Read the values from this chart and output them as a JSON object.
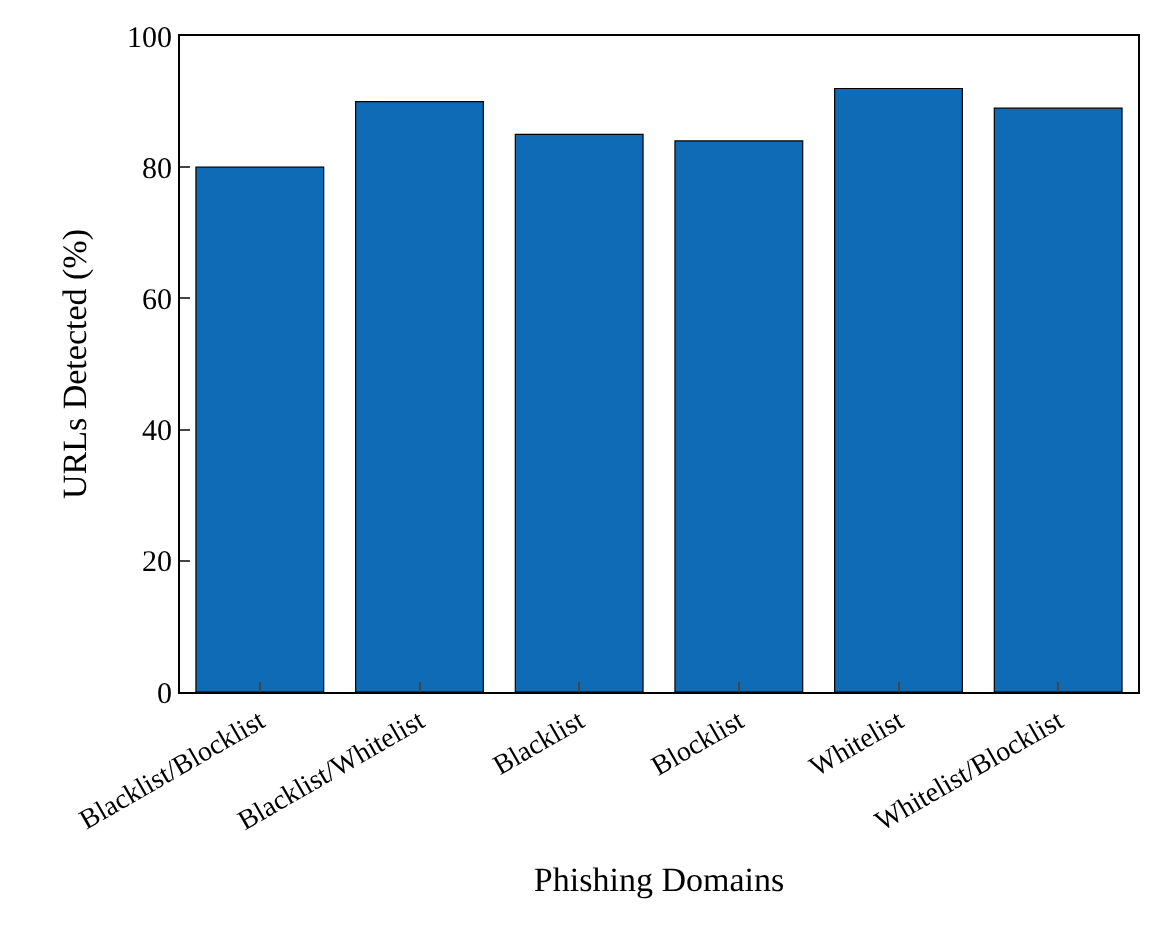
{
  "chart_data": {
    "type": "bar",
    "xlabel": "Phishing Domains",
    "ylabel": "URLs Detected (%)",
    "categories": [
      "Blacklist/Blocklist",
      "Blacklist/Whitelist",
      "Blacklist",
      "Blocklist",
      "Whitelist",
      "Whitelist/Blocklist"
    ],
    "values": [
      80,
      90,
      85,
      84,
      92,
      89
    ],
    "color": "#0f6bb5",
    "ylim": [
      0,
      100
    ],
    "yticks": [
      0,
      20,
      40,
      60,
      80,
      100
    ]
  }
}
